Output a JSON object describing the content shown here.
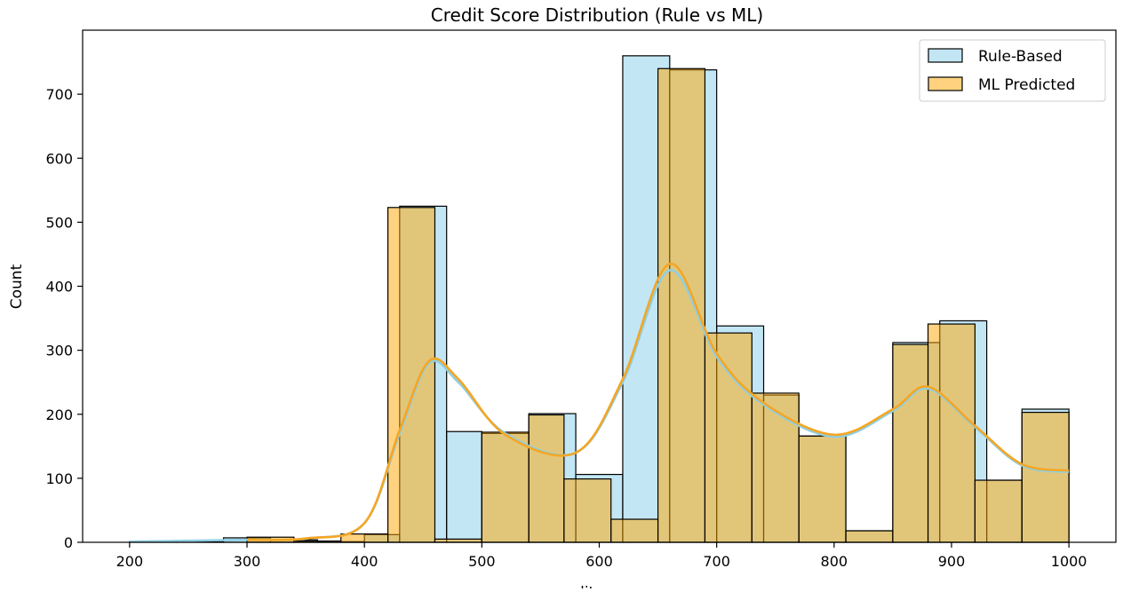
{
  "chart_data": {
    "type": "bar",
    "title": "Credit Score Distribution (Rule vs ML)",
    "xlabel": "credit_score",
    "ylabel": "Count",
    "xlim": [
      160,
      1040
    ],
    "ylim": [
      0,
      800
    ],
    "xticks": [
      200,
      300,
      400,
      500,
      600,
      700,
      800,
      900,
      1000
    ],
    "yticks": [
      0,
      100,
      200,
      300,
      400,
      500,
      600,
      700
    ],
    "grid": false,
    "legend_position": "top-right",
    "series": [
      {
        "name": "Rule-Based",
        "fill": "#87ceeb",
        "line": "#8fcfe3",
        "bins": [
          {
            "x0": 200,
            "x1": 240,
            "count": 1
          },
          {
            "x0": 240,
            "x1": 280,
            "count": 1
          },
          {
            "x0": 280,
            "x1": 320,
            "count": 7
          },
          {
            "x0": 320,
            "x1": 360,
            "count": 4
          },
          {
            "x0": 360,
            "x1": 400,
            "count": 1
          },
          {
            "x0": 400,
            "x1": 430,
            "count": 12
          },
          {
            "x0": 430,
            "x1": 470,
            "count": 525
          },
          {
            "x0": 470,
            "x1": 500,
            "count": 173
          },
          {
            "x0": 500,
            "x1": 540,
            "count": 170
          },
          {
            "x0": 540,
            "x1": 580,
            "count": 201
          },
          {
            "x0": 580,
            "x1": 620,
            "count": 106
          },
          {
            "x0": 620,
            "x1": 660,
            "count": 760
          },
          {
            "x0": 660,
            "x1": 700,
            "count": 738
          },
          {
            "x0": 700,
            "x1": 740,
            "count": 338
          },
          {
            "x0": 740,
            "x1": 770,
            "count": 230
          },
          {
            "x0": 770,
            "x1": 810,
            "count": 166
          },
          {
            "x0": 810,
            "x1": 850,
            "count": 18
          },
          {
            "x0": 850,
            "x1": 890,
            "count": 312
          },
          {
            "x0": 890,
            "x1": 930,
            "count": 346
          },
          {
            "x0": 930,
            "x1": 960,
            "count": 97
          },
          {
            "x0": 960,
            "x1": 1000,
            "count": 208
          }
        ],
        "kde": [
          [
            200,
            1
          ],
          [
            300,
            4
          ],
          [
            350,
            6
          ],
          [
            400,
            30
          ],
          [
            430,
            170
          ],
          [
            455,
            280
          ],
          [
            480,
            250
          ],
          [
            520,
            170
          ],
          [
            580,
            140
          ],
          [
            620,
            250
          ],
          [
            660,
            425
          ],
          [
            700,
            290
          ],
          [
            740,
            215
          ],
          [
            800,
            165
          ],
          [
            850,
            205
          ],
          [
            880,
            240
          ],
          [
            920,
            180
          ],
          [
            960,
            120
          ],
          [
            1000,
            110
          ]
        ]
      },
      {
        "name": "ML Predicted",
        "fill": "#ffa500",
        "line": "#f5a623",
        "bins": [
          {
            "x0": 300,
            "x1": 340,
            "count": 8
          },
          {
            "x0": 340,
            "x1": 380,
            "count": 2
          },
          {
            "x0": 380,
            "x1": 420,
            "count": 13
          },
          {
            "x0": 420,
            "x1": 460,
            "count": 523
          },
          {
            "x0": 460,
            "x1": 500,
            "count": 5
          },
          {
            "x0": 500,
            "x1": 540,
            "count": 172
          },
          {
            "x0": 540,
            "x1": 570,
            "count": 199
          },
          {
            "x0": 570,
            "x1": 610,
            "count": 99
          },
          {
            "x0": 610,
            "x1": 650,
            "count": 36
          },
          {
            "x0": 650,
            "x1": 690,
            "count": 740
          },
          {
            "x0": 690,
            "x1": 730,
            "count": 327
          },
          {
            "x0": 730,
            "x1": 770,
            "count": 233
          },
          {
            "x0": 770,
            "x1": 810,
            "count": 166
          },
          {
            "x0": 810,
            "x1": 850,
            "count": 18
          },
          {
            "x0": 850,
            "x1": 880,
            "count": 309
          },
          {
            "x0": 880,
            "x1": 920,
            "count": 341
          },
          {
            "x0": 920,
            "x1": 960,
            "count": 97
          },
          {
            "x0": 960,
            "x1": 1000,
            "count": 203
          }
        ],
        "kde": [
          [
            300,
            4
          ],
          [
            350,
            6
          ],
          [
            400,
            30
          ],
          [
            430,
            175
          ],
          [
            455,
            283
          ],
          [
            480,
            255
          ],
          [
            520,
            168
          ],
          [
            580,
            140
          ],
          [
            620,
            255
          ],
          [
            660,
            435
          ],
          [
            700,
            295
          ],
          [
            740,
            218
          ],
          [
            800,
            168
          ],
          [
            850,
            208
          ],
          [
            880,
            243
          ],
          [
            920,
            182
          ],
          [
            960,
            122
          ],
          [
            1000,
            112
          ]
        ]
      }
    ]
  }
}
